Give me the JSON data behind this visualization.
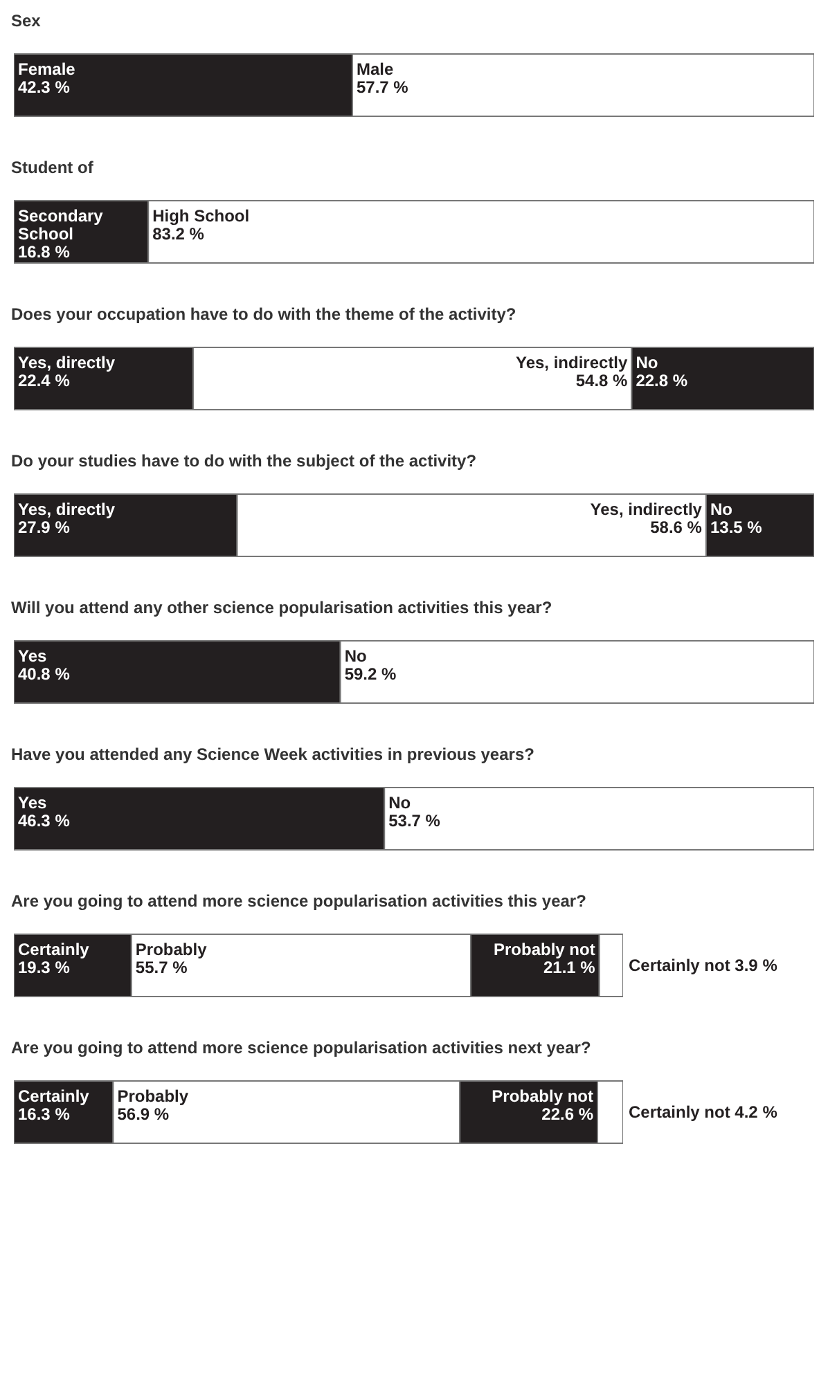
{
  "chart_data": [
    {
      "type": "bar",
      "title": "Sex",
      "orientation": "horizontal",
      "stacked": true,
      "tick_labels": false,
      "xlim": [
        0,
        100
      ],
      "categories": [
        null
      ],
      "series": [
        {
          "name": "Female",
          "color": "#231f20",
          "values": [
            42.3
          ],
          "value_labels": [
            "42.3 %"
          ]
        },
        {
          "name": "Male",
          "color": "#ffffff",
          "values": [
            57.7
          ],
          "value_labels": [
            "57.7 %"
          ]
        }
      ]
    },
    {
      "type": "bar",
      "title": "Student of",
      "orientation": "horizontal",
      "stacked": true,
      "tick_labels": false,
      "xlim": [
        0,
        100
      ],
      "categories": [
        null
      ],
      "series": [
        {
          "name": "Secondary School",
          "color": "#231f20",
          "values": [
            16.8
          ],
          "value_labels": [
            "16.8 %"
          ]
        },
        {
          "name": "High School",
          "color": "#ffffff",
          "values": [
            83.2
          ],
          "value_labels": [
            "83.2 %"
          ]
        }
      ]
    },
    {
      "type": "bar",
      "title": "Does your occupation have to do with the theme of the activity?",
      "orientation": "horizontal",
      "stacked": true,
      "tick_labels": false,
      "xlim": [
        0,
        100
      ],
      "categories": [
        null
      ],
      "series": [
        {
          "name": "Yes, directly",
          "color": "#231f20",
          "values": [
            22.4
          ],
          "value_labels": [
            "22.4 %"
          ]
        },
        {
          "name": "Yes, indirectly",
          "color": "#ffffff",
          "values": [
            54.8
          ],
          "value_labels": [
            "54.8 %"
          ]
        },
        {
          "name": "No",
          "color": "#231f20",
          "values": [
            22.8
          ],
          "value_labels": [
            "22.8 %"
          ]
        }
      ]
    },
    {
      "type": "bar",
      "title": "Do your studies have to do with the subject of the activity?",
      "orientation": "horizontal",
      "stacked": true,
      "tick_labels": false,
      "xlim": [
        0,
        100
      ],
      "categories": [
        null
      ],
      "series": [
        {
          "name": "Yes, directly",
          "color": "#231f20",
          "values": [
            27.9
          ],
          "value_labels": [
            "27.9 %"
          ]
        },
        {
          "name": "Yes, indirectly",
          "color": "#ffffff",
          "values": [
            58.6
          ],
          "value_labels": [
            "58.6 %"
          ]
        },
        {
          "name": "No",
          "color": "#231f20",
          "values": [
            13.5
          ],
          "value_labels": [
            "13.5 %"
          ]
        }
      ]
    },
    {
      "type": "bar",
      "title": "Will you attend any other science popularisation activities this year?",
      "orientation": "horizontal",
      "stacked": true,
      "tick_labels": false,
      "xlim": [
        0,
        100
      ],
      "categories": [
        null
      ],
      "series": [
        {
          "name": "Yes",
          "color": "#231f20",
          "values": [
            40.8
          ],
          "value_labels": [
            "40.8 %"
          ]
        },
        {
          "name": "No",
          "color": "#ffffff",
          "values": [
            59.2
          ],
          "value_labels": [
            "59.2 %"
          ]
        }
      ]
    },
    {
      "type": "bar",
      "title": "Have you attended any Science Week activities in previous years?",
      "orientation": "horizontal",
      "stacked": true,
      "tick_labels": false,
      "xlim": [
        0,
        100
      ],
      "categories": [
        null
      ],
      "series": [
        {
          "name": "Yes",
          "color": "#231f20",
          "values": [
            46.3
          ],
          "value_labels": [
            "46.3 %"
          ]
        },
        {
          "name": "No",
          "color": "#ffffff",
          "values": [
            53.7
          ],
          "value_labels": [
            "53.7 %"
          ]
        }
      ]
    },
    {
      "type": "bar",
      "title": "Are you going to attend more science popularisation activities this year?",
      "orientation": "horizontal",
      "stacked": true,
      "tick_labels": false,
      "xlim": [
        0,
        100
      ],
      "categories": [
        null
      ],
      "series": [
        {
          "name": "Certainly",
          "color": "#231f20",
          "values": [
            19.3
          ],
          "value_labels": [
            "19.3 %"
          ]
        },
        {
          "name": "Probably",
          "color": "#ffffff",
          "values": [
            55.7
          ],
          "value_labels": [
            "55.7 %"
          ]
        },
        {
          "name": "Probably not",
          "color": "#231f20",
          "values": [
            21.1
          ],
          "value_labels": [
            "21.1 %"
          ]
        },
        {
          "name": "Certainly not",
          "color": "#ffffff",
          "values": [
            3.9
          ],
          "value_labels": [
            "3.9 %"
          ]
        }
      ]
    },
    {
      "type": "bar",
      "title": "Are you going to attend more science popularisation activities next year?",
      "orientation": "horizontal",
      "stacked": true,
      "tick_labels": false,
      "xlim": [
        0,
        100
      ],
      "categories": [
        null
      ],
      "series": [
        {
          "name": "Certainly",
          "color": "#231f20",
          "values": [
            16.3
          ],
          "value_labels": [
            "16.3 %"
          ]
        },
        {
          "name": "Probably",
          "color": "#ffffff",
          "values": [
            56.9
          ],
          "value_labels": [
            "56.9 %"
          ]
        },
        {
          "name": "Probably not",
          "color": "#231f20",
          "values": [
            22.6
          ],
          "value_labels": [
            "22.6 %"
          ]
        },
        {
          "name": "Certainly not",
          "color": "#ffffff",
          "values": [
            4.2
          ],
          "value_labels": [
            "4.2 %"
          ]
        }
      ]
    }
  ]
}
